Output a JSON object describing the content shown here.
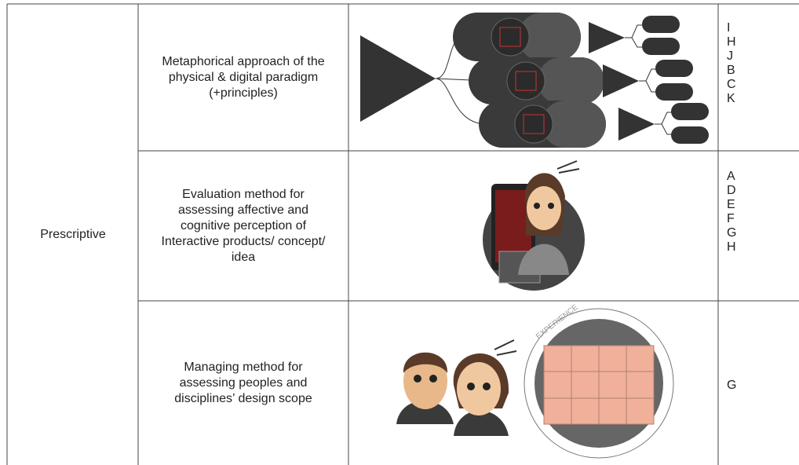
{
  "table": {
    "category": "Prescriptive",
    "rows": [
      {
        "description": "Metaphorical approach of the physical & digital paradigm (+principles)",
        "codes": [
          "I",
          "H",
          "J",
          "B",
          "C",
          "K"
        ]
      },
      {
        "description": "Evaluation method for assessing affective and cognitive perception of Interactive products/ concept/ idea",
        "codes": [
          "A",
          "D",
          "E",
          "F",
          "G",
          "H"
        ]
      },
      {
        "description": "Managing method for assessing peoples and disciplines’ design scope",
        "codes": [
          "G"
        ],
        "figure_label": "EXPERIENCE"
      }
    ]
  }
}
